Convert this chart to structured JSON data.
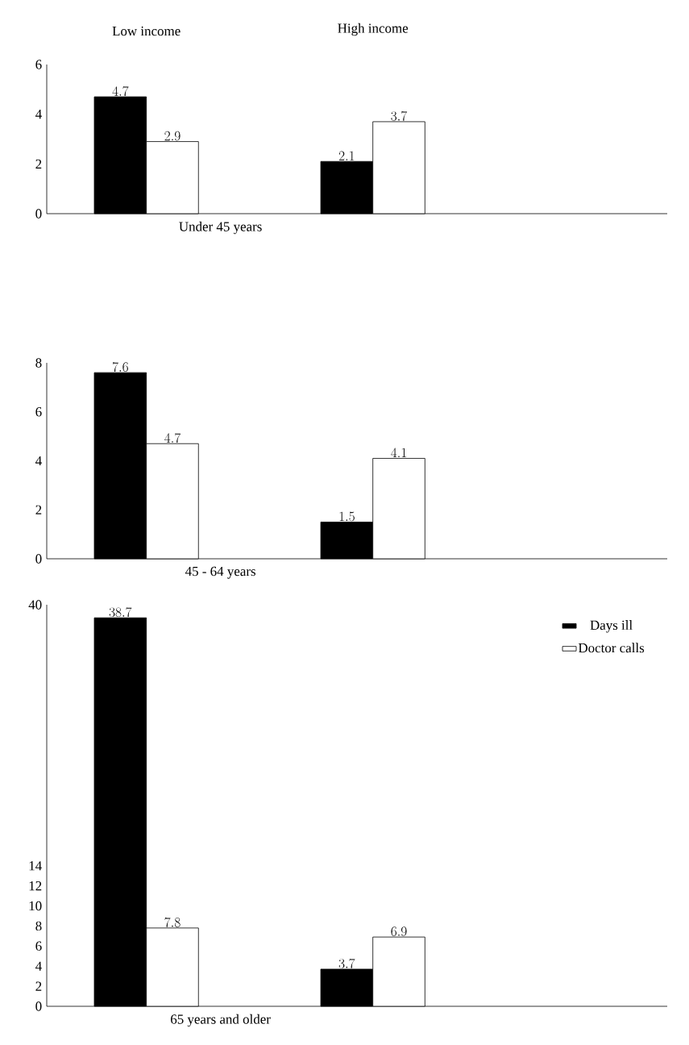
{
  "chart_data": [
    {
      "type": "bar",
      "categories": [
        "Low income",
        "High income"
      ],
      "xlabel": "Under 45 years",
      "ylim": [
        0,
        6
      ],
      "yticks": [
        0,
        2,
        4,
        6
      ],
      "data_labels": true,
      "grid": false,
      "series": [
        {
          "color": "#000000",
          "values": [
            4.7,
            2.1
          ]
        },
        {
          "color": "#ffffff",
          "values": [
            2.9,
            3.7
          ]
        }
      ]
    },
    {
      "type": "bar",
      "categories": [
        null,
        null
      ],
      "xlabel": "45 - 64 years",
      "ylim": [
        0,
        8
      ],
      "yticks": [
        0,
        2,
        4,
        6,
        8
      ],
      "data_labels": true,
      "grid": false,
      "tick_labels": "y",
      "series": [
        {
          "color": "#000000",
          "values": [
            7.6,
            1.5
          ]
        },
        {
          "color": "#ffffff",
          "values": [
            4.7,
            4.1
          ]
        }
      ]
    },
    {
      "type": "bar",
      "categories": [
        null,
        null
      ],
      "xlabel": "65 years and older",
      "ylim": [
        0,
        40
      ],
      "yticks": [
        0,
        2,
        4,
        6,
        8,
        10,
        12,
        14,
        40
      ],
      "data_labels": true,
      "grid": false,
      "tick_labels": "y",
      "legend": "top right",
      "series": [
        {
          "name": "Days ill",
          "color": "#000000",
          "values": [
            38.7,
            3.7
          ]
        },
        {
          "name": "Doctor calls",
          "color": "#ffffff",
          "values": [
            7.8,
            6.9
          ]
        }
      ]
    }
  ]
}
